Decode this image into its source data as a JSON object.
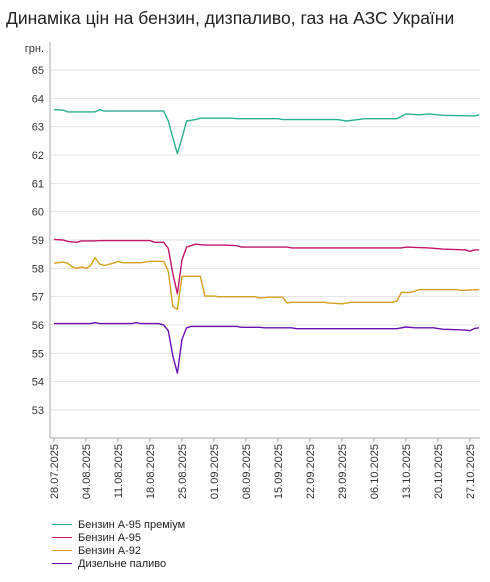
{
  "title": "Динаміка цін на бензин, дизпаливо, газ на АЗС України",
  "chart_data": {
    "type": "line",
    "title": "Динаміка цін на бензин, дизпаливо, газ на АЗС України",
    "ylabel": "грн.",
    "ylim": [
      52,
      66
    ],
    "y_ticks": [
      53,
      54,
      55,
      56,
      57,
      58,
      59,
      60,
      61,
      62,
      63,
      64,
      65
    ],
    "x_tick_labels": [
      "28.07.2025",
      "04.08.2025",
      "11.08.2025",
      "18.08.2025",
      "25.08.2025",
      "01.09.2025",
      "08.09.2025",
      "15.09.2025",
      "22.09.2025",
      "29.09.2025",
      "06.10.2025",
      "13.10.2025",
      "20.10.2025",
      "27.10.2025"
    ],
    "grid": "horizontal",
    "legend_position": "bottom",
    "series": [
      {
        "name": "Бензин А-95 преміум",
        "color": "#2ab08f",
        "points": [
          [
            "2025-07-28",
            63.6
          ],
          [
            "2025-07-30",
            63.58
          ],
          [
            "2025-07-31",
            63.52
          ],
          [
            "2025-08-06",
            63.52
          ],
          [
            "2025-08-07",
            63.6
          ],
          [
            "2025-08-08",
            63.55
          ],
          [
            "2025-08-21",
            63.55
          ],
          [
            "2025-08-22",
            63.2
          ],
          [
            "2025-08-23",
            62.6
          ],
          [
            "2025-08-24",
            62.05
          ],
          [
            "2025-08-25",
            62.6
          ],
          [
            "2025-08-26",
            63.2
          ],
          [
            "2025-08-28",
            63.25
          ],
          [
            "2025-08-29",
            63.3
          ],
          [
            "2025-09-05",
            63.3
          ],
          [
            "2025-09-06",
            63.28
          ],
          [
            "2025-09-15",
            63.28
          ],
          [
            "2025-09-16",
            63.25
          ],
          [
            "2025-09-28",
            63.25
          ],
          [
            "2025-09-30",
            63.2
          ],
          [
            "2025-10-04",
            63.28
          ],
          [
            "2025-10-11",
            63.28
          ],
          [
            "2025-10-13",
            63.45
          ],
          [
            "2025-10-16",
            63.42
          ],
          [
            "2025-10-18",
            63.45
          ],
          [
            "2025-10-21",
            63.4
          ],
          [
            "2025-10-28",
            63.38
          ],
          [
            "2025-10-29",
            63.42
          ]
        ]
      },
      {
        "name": "Бензин А-95",
        "color": "#c0166a",
        "points": [
          [
            "2025-07-28",
            59.02
          ],
          [
            "2025-07-30",
            59.0
          ],
          [
            "2025-07-31",
            58.95
          ],
          [
            "2025-08-02",
            58.92
          ],
          [
            "2025-08-03",
            58.97
          ],
          [
            "2025-08-06",
            58.97
          ],
          [
            "2025-08-07",
            58.98
          ],
          [
            "2025-08-18",
            58.98
          ],
          [
            "2025-08-19",
            58.92
          ],
          [
            "2025-08-21",
            58.92
          ],
          [
            "2025-08-22",
            58.7
          ],
          [
            "2025-08-23",
            57.8
          ],
          [
            "2025-08-24",
            57.1
          ],
          [
            "2025-08-25",
            58.3
          ],
          [
            "2025-08-26",
            58.75
          ],
          [
            "2025-08-28",
            58.85
          ],
          [
            "2025-08-30",
            58.82
          ],
          [
            "2025-09-03",
            58.82
          ],
          [
            "2025-09-06",
            58.8
          ],
          [
            "2025-09-07",
            58.75
          ],
          [
            "2025-09-17",
            58.75
          ],
          [
            "2025-09-18",
            58.72
          ],
          [
            "2025-10-12",
            58.72
          ],
          [
            "2025-10-13",
            58.75
          ],
          [
            "2025-10-18",
            58.72
          ],
          [
            "2025-10-21",
            58.68
          ],
          [
            "2025-10-26",
            58.65
          ],
          [
            "2025-10-27",
            58.6
          ],
          [
            "2025-10-28",
            58.65
          ],
          [
            "2025-10-29",
            58.65
          ]
        ]
      },
      {
        "name": "Бензин А-92",
        "color": "#d4a020",
        "points": [
          [
            "2025-07-28",
            58.18
          ],
          [
            "2025-07-30",
            58.22
          ],
          [
            "2025-07-31",
            58.18
          ],
          [
            "2025-08-01",
            58.05
          ],
          [
            "2025-08-02",
            58.0
          ],
          [
            "2025-08-03",
            58.05
          ],
          [
            "2025-08-04",
            58.0
          ],
          [
            "2025-08-05",
            58.1
          ],
          [
            "2025-08-06",
            58.38
          ],
          [
            "2025-08-07",
            58.15
          ],
          [
            "2025-08-08",
            58.1
          ],
          [
            "2025-08-10",
            58.18
          ],
          [
            "2025-08-11",
            58.25
          ],
          [
            "2025-08-12",
            58.2
          ],
          [
            "2025-08-16",
            58.2
          ],
          [
            "2025-08-18",
            58.25
          ],
          [
            "2025-08-21",
            58.25
          ],
          [
            "2025-08-22",
            57.9
          ],
          [
            "2025-08-23",
            56.65
          ],
          [
            "2025-08-24",
            56.55
          ],
          [
            "2025-08-25",
            57.72
          ],
          [
            "2025-08-29",
            57.72
          ],
          [
            "2025-08-30",
            57.02
          ],
          [
            "2025-09-01",
            57.02
          ],
          [
            "2025-09-02",
            57.0
          ],
          [
            "2025-09-10",
            57.0
          ],
          [
            "2025-09-11",
            56.95
          ],
          [
            "2025-09-13",
            56.98
          ],
          [
            "2025-09-16",
            56.98
          ],
          [
            "2025-09-17",
            56.78
          ],
          [
            "2025-09-18",
            56.8
          ],
          [
            "2025-09-25",
            56.8
          ],
          [
            "2025-09-26",
            56.78
          ],
          [
            "2025-09-29",
            56.75
          ],
          [
            "2025-10-01",
            56.8
          ],
          [
            "2025-10-10",
            56.8
          ],
          [
            "2025-10-11",
            56.85
          ],
          [
            "2025-10-12",
            57.15
          ],
          [
            "2025-10-14",
            57.15
          ],
          [
            "2025-10-16",
            57.25
          ],
          [
            "2025-10-24",
            57.25
          ],
          [
            "2025-10-25",
            57.22
          ],
          [
            "2025-10-29",
            57.25
          ]
        ]
      },
      {
        "name": "Дизельне паливо",
        "color": "#6a10b0",
        "points": [
          [
            "2025-07-28",
            56.05
          ],
          [
            "2025-08-05",
            56.05
          ],
          [
            "2025-08-06",
            56.08
          ],
          [
            "2025-08-07",
            56.05
          ],
          [
            "2025-08-14",
            56.05
          ],
          [
            "2025-08-15",
            56.08
          ],
          [
            "2025-08-16",
            56.05
          ],
          [
            "2025-08-20",
            56.05
          ],
          [
            "2025-08-21",
            56.0
          ],
          [
            "2025-08-22",
            55.8
          ],
          [
            "2025-08-23",
            54.9
          ],
          [
            "2025-08-24",
            54.3
          ],
          [
            "2025-08-25",
            55.5
          ],
          [
            "2025-08-26",
            55.9
          ],
          [
            "2025-08-27",
            55.95
          ],
          [
            "2025-09-06",
            55.95
          ],
          [
            "2025-09-07",
            55.92
          ],
          [
            "2025-09-11",
            55.92
          ],
          [
            "2025-09-12",
            55.9
          ],
          [
            "2025-09-18",
            55.9
          ],
          [
            "2025-09-19",
            55.87
          ],
          [
            "2025-10-11",
            55.87
          ],
          [
            "2025-10-13",
            55.93
          ],
          [
            "2025-10-15",
            55.9
          ],
          [
            "2025-10-19",
            55.9
          ],
          [
            "2025-10-21",
            55.85
          ],
          [
            "2025-10-26",
            55.82
          ],
          [
            "2025-10-27",
            55.8
          ],
          [
            "2025-10-28",
            55.88
          ],
          [
            "2025-10-29",
            55.9
          ]
        ]
      }
    ]
  }
}
